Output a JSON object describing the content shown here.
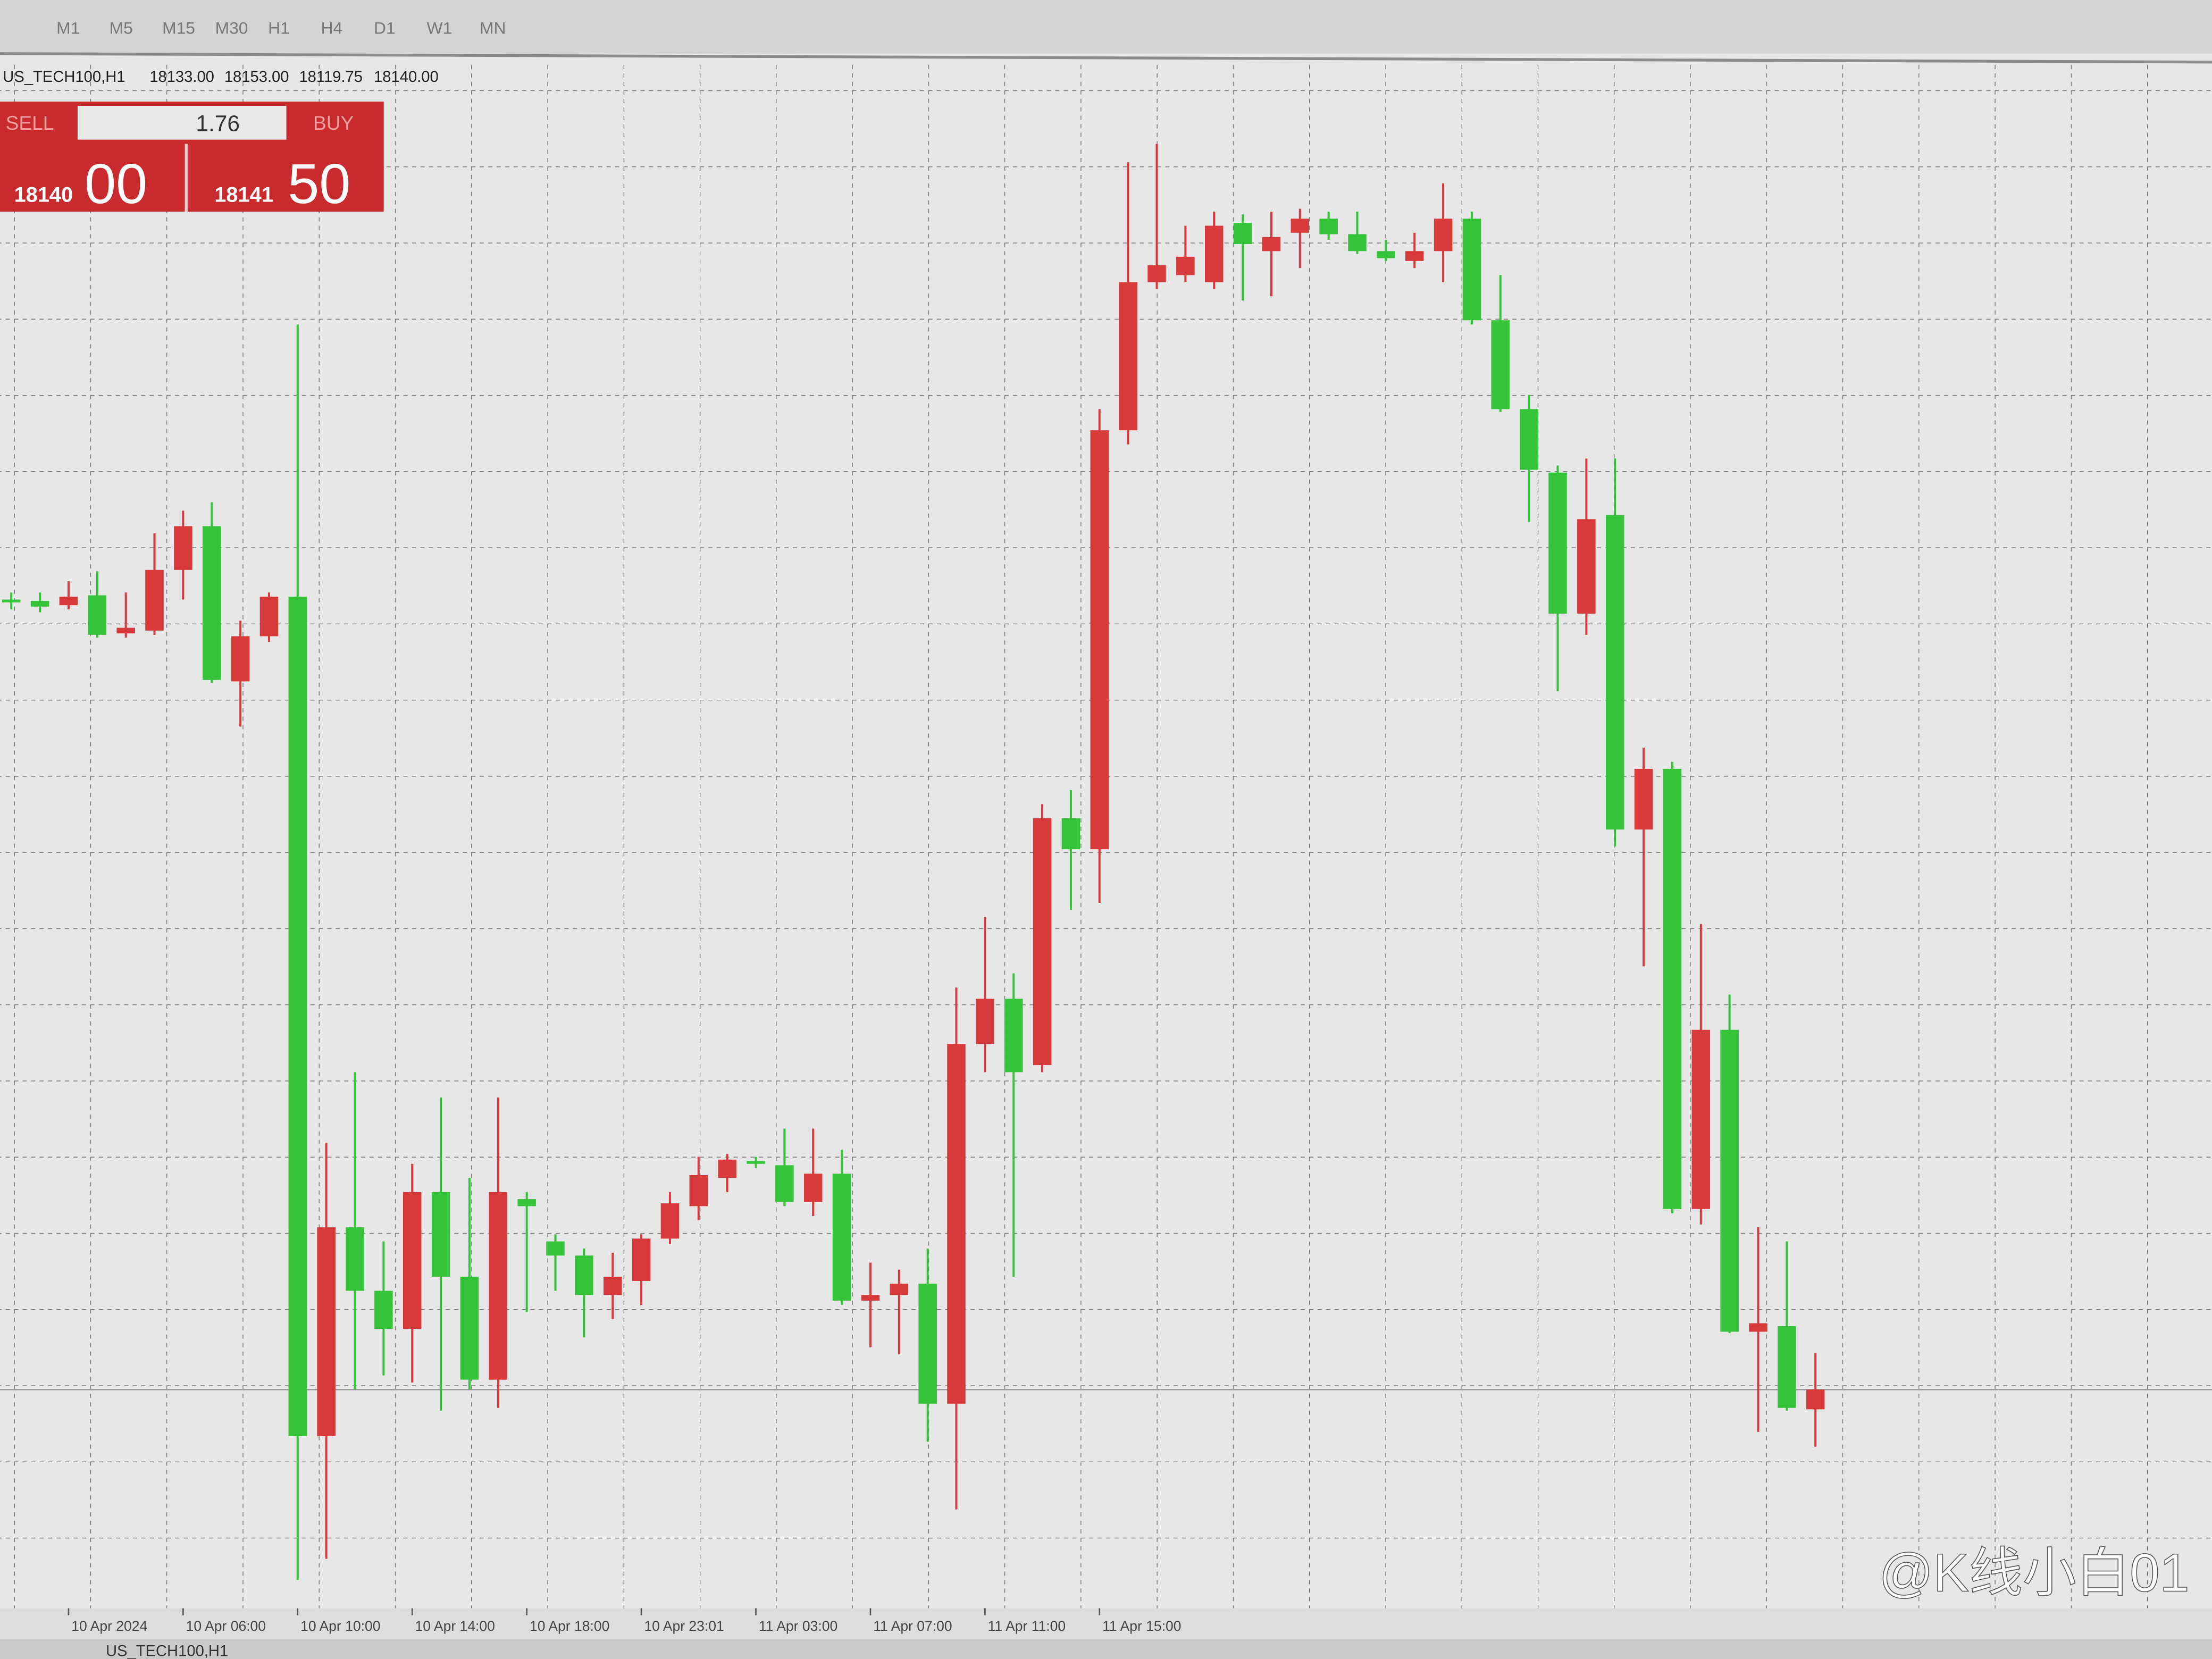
{
  "toolbar": {
    "timeframes": [
      "M1",
      "M5",
      "M15",
      "M30",
      "H1",
      "H4",
      "D1",
      "W1",
      "MN"
    ]
  },
  "trade_panel": {
    "sell_label": "SELL",
    "buy_label": "BUY",
    "volume": "1.76",
    "sell_price": {
      "main": "18140",
      "big": "00"
    },
    "buy_price": {
      "main": "18141",
      "big": "50"
    }
  },
  "chart_data": {
    "type": "candlestick",
    "title": "US_TECH100,H1",
    "ohlc_labels": [
      "18133.00",
      "18153.00",
      "18119.75",
      "18140.00"
    ],
    "categories": [
      null,
      null,
      "10 Apr 2024",
      null,
      null,
      null,
      "10 Apr 06:00",
      null,
      null,
      null,
      "10 Apr 10:00",
      null,
      null,
      null,
      "10 Apr 14:00",
      null,
      null,
      null,
      "10 Apr 18:00",
      null,
      null,
      null,
      "10 Apr 23:01",
      null,
      null,
      null,
      "11 Apr 03:00",
      null,
      null,
      null,
      "11 Apr 07:00",
      null,
      null,
      null,
      "11 Apr 11:00",
      null,
      null,
      null,
      "11 Apr 15:00",
      null,
      null,
      null,
      null,
      null,
      null,
      null,
      null,
      null,
      null,
      null,
      null,
      null,
      null,
      null,
      null,
      null,
      null,
      null,
      null,
      null,
      null,
      null,
      null,
      null
    ],
    "open": [
      18420,
      18419.5,
      18418,
      18421.5,
      18408,
      18409,
      18430.5,
      18446,
      18391,
      18407,
      18421,
      18123.5,
      18197.5,
      18175,
      18161.5,
      18210,
      18180,
      18143.5,
      18207.5,
      18192.5,
      18187.5,
      18173.5,
      18178.5,
      18193.5,
      18205,
      18215,
      18221,
      18219.5,
      18206.5,
      18216.5,
      18171.5,
      18173.5,
      18177.5,
      18135,
      18262.5,
      18278.5,
      18255,
      18342.5,
      18331.5,
      18480,
      18532.5,
      18535,
      18532.5,
      18553.5,
      18543.5,
      18550,
      18555,
      18549.5,
      18543.5,
      18540,
      18543.5,
      18555,
      18519,
      18487.5,
      18465,
      18415,
      18450,
      18338.5,
      18360,
      18204,
      18267.5,
      18160.5,
      18162.5,
      18133
    ],
    "high": [
      18422.5,
      18422.5,
      18426.5,
      18430,
      18422.5,
      18443.5,
      18451.5,
      18454.5,
      18412.5,
      18422.5,
      18517.5,
      18227.5,
      18252.5,
      18192.5,
      18220,
      18243.5,
      18215,
      18243.5,
      18210,
      18195,
      18190,
      18188.5,
      18195,
      18210,
      18222.5,
      18223.5,
      18222.5,
      18232.5,
      18232.5,
      18225,
      18185,
      18182.5,
      18190,
      18282.5,
      18307.5,
      18287.5,
      18347.5,
      18352.5,
      18487.5,
      18575,
      18581.5,
      18552.5,
      18557.5,
      18556.5,
      18557.5,
      18558.5,
      18557.5,
      18557.5,
      18547.5,
      18550,
      18567.5,
      18557.5,
      18535,
      18492.5,
      18467.5,
      18470,
      18470,
      18367.5,
      18362.5,
      18305,
      18280,
      18197.5,
      18192.5,
      18153
    ],
    "low": [
      18416.5,
      18415.5,
      18416.5,
      18406.5,
      18406.5,
      18407.5,
      18420,
      18390.5,
      18375,
      18405,
      18072.5,
      18080,
      18140,
      18145,
      18142.5,
      18132.5,
      18140,
      18133.5,
      18167.5,
      18175,
      18158.5,
      18165,
      18170,
      18191.5,
      18200,
      18210,
      18218.5,
      18205,
      18201.5,
      18170,
      18155,
      18152.5,
      18121.5,
      18097.5,
      18252.5,
      18180,
      18252.5,
      18310,
      18312.5,
      18475,
      18530,
      18532.5,
      18530,
      18526,
      18527.5,
      18537.5,
      18547.5,
      18542.5,
      18540,
      18537.5,
      18532.5,
      18517.5,
      18486.5,
      18447.5,
      18387.5,
      18407.5,
      18332.5,
      18290,
      18202.5,
      18198.5,
      18160,
      18125,
      18132.5,
      18119.75
    ],
    "close": [
      18419,
      18417.5,
      18421,
      18407.5,
      18410,
      18430.5,
      18446,
      18391.5,
      18407,
      18421,
      18123.5,
      18197.5,
      18175,
      18161.5,
      18210,
      18180,
      18143.5,
      18210,
      18205,
      18187.5,
      18173.5,
      18180,
      18193.5,
      18206,
      18216,
      18221.5,
      18220,
      18206.5,
      18216.5,
      18171.5,
      18173.5,
      18177.5,
      18135,
      18262.5,
      18278.5,
      18252.5,
      18342.5,
      18331.5,
      18480,
      18532.5,
      18538.5,
      18541.5,
      18552.5,
      18546,
      18548.5,
      18555,
      18549.5,
      18543.5,
      18541,
      18543.5,
      18555,
      18519,
      18487.5,
      18466,
      18415,
      18448.5,
      18338.5,
      18360,
      18204,
      18267.5,
      18160.5,
      18163.5,
      18133.5,
      18140
    ],
    "up_color": "#d8393b",
    "down_color": "#35c33a",
    "ylim": [
      18062.5,
      18610
    ],
    "grid": true
  },
  "tab": "US_TECH100,H1",
  "watermark": "@K线小白01"
}
